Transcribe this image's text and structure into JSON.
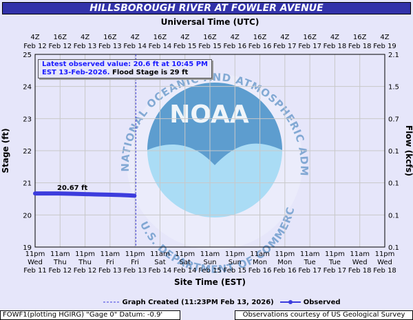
{
  "title": "HILLSBOROUGH RIVER AT FOWLER AVENUE",
  "info": {
    "line1": "Latest observed value: 20.6 ft at 10:45 PM",
    "line2_blue": "EST 13-Feb-2026.",
    "line2_black": "Flood Stage is 29 ft"
  },
  "data_label": "20.67 ft",
  "legend": {
    "created": "Graph Created (11:23PM Feb 13, 2026)",
    "observed": "Observed"
  },
  "footer": {
    "left": "FOWF1(plotting HGIRG) \"Gage 0\" Datum: -0.9'",
    "right": "Observations courtesy of US Geological Survey"
  },
  "watermark": {
    "logo_text": "NOAA",
    "ring_text": "NATIONAL OCEANIC AND ATMOSPHERIC ADMINISTRATION",
    "bottom_text": "U.S. DEPARTMENT OF COMMERCE"
  },
  "colors": {
    "observed": "#3c3cdd",
    "created_line": "#3c3cdd",
    "grid": "#c8c8c8",
    "title_bg": "#3232aa",
    "noaa_dark": "#1e6aae",
    "noaa_light": "#aadcf5"
  },
  "chart_data": {
    "type": "line",
    "title": "HILLSBOROUGH RIVER AT FOWLER AVENUE",
    "xlabel": "Site Time (EST)",
    "x2label": "Universal Time (UTC)",
    "ylabel": "Stage (ft)",
    "y2label": "Flow (kcfs)",
    "ylim": [
      19,
      25
    ],
    "yticks": [
      19,
      20,
      21,
      22,
      23,
      24,
      25
    ],
    "y2ticks": [
      "0.1",
      "0.1",
      "0.1",
      "0.1",
      "0.7",
      "1.5",
      "2.1"
    ],
    "grid": true,
    "bottom_ticks": [
      [
        "11pm",
        "Wed",
        "Feb 11"
      ],
      [
        "11am",
        "Thu",
        "Feb 12"
      ],
      [
        "11pm",
        "Thu",
        "Feb 12"
      ],
      [
        "11am",
        "Fri",
        "Feb 13"
      ],
      [
        "11pm",
        "Fri",
        "Feb 13"
      ],
      [
        "11am",
        "Sat",
        "Feb 14"
      ],
      [
        "11pm",
        "Sat",
        "Feb 14"
      ],
      [
        "11am",
        "Sun",
        "Feb 15"
      ],
      [
        "11pm",
        "Sun",
        "Feb 15"
      ],
      [
        "11am",
        "Mon",
        "Feb 16"
      ],
      [
        "11pm",
        "Mon",
        "Feb 16"
      ],
      [
        "11am",
        "Tue",
        "Feb 17"
      ],
      [
        "11pm",
        "Tue",
        "Feb 17"
      ],
      [
        "11am",
        "Wed",
        "Feb 18"
      ],
      [
        "11pm",
        "Wed",
        "Feb 18"
      ]
    ],
    "top_ticks": [
      [
        "4Z",
        "Feb 12"
      ],
      [
        "16Z",
        "Feb 12"
      ],
      [
        "4Z",
        "Feb 13"
      ],
      [
        "16Z",
        "Feb 13"
      ],
      [
        "4Z",
        "Feb 14"
      ],
      [
        "16Z",
        "Feb 14"
      ],
      [
        "4Z",
        "Feb 15"
      ],
      [
        "16Z",
        "Feb 15"
      ],
      [
        "4Z",
        "Feb 16"
      ],
      [
        "16Z",
        "Feb 16"
      ],
      [
        "4Z",
        "Feb 17"
      ],
      [
        "16Z",
        "Feb 17"
      ],
      [
        "4Z",
        "Feb 18"
      ],
      [
        "16Z",
        "Feb 18"
      ],
      [
        "4Z",
        "Feb 19"
      ]
    ],
    "x_start": "2026-02-11 23:00 EST",
    "x_end": "2026-02-18 23:00 EST",
    "graph_created": "2026-02-13 23:23 EST",
    "series": [
      {
        "name": "Observed",
        "x": [
          "2026-02-11 23:00",
          "2026-02-12 04:00",
          "2026-02-12 10:00",
          "2026-02-12 16:00",
          "2026-02-12 22:00",
          "2026-02-13 04:00",
          "2026-02-13 10:00",
          "2026-02-13 16:00",
          "2026-02-13 20:00",
          "2026-02-13 22:45"
        ],
        "y": [
          20.67,
          20.67,
          20.67,
          20.66,
          20.65,
          20.64,
          20.63,
          20.62,
          20.61,
          20.6
        ]
      }
    ]
  }
}
